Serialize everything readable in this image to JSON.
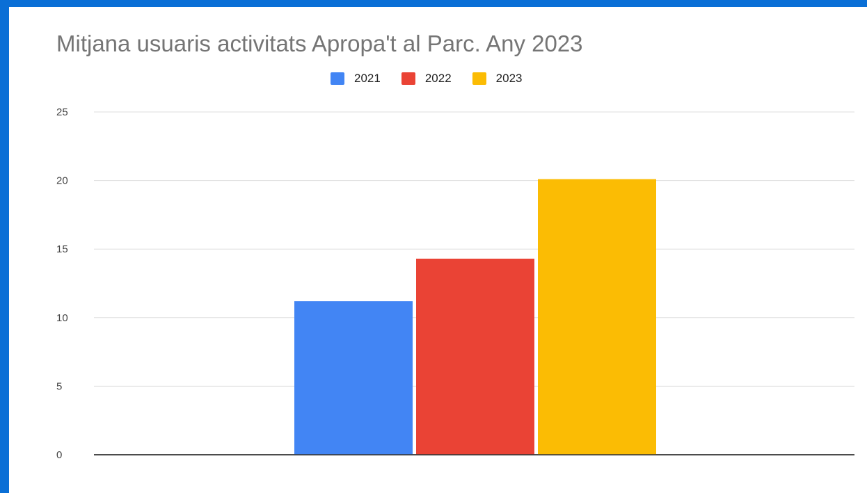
{
  "chart_data": {
    "type": "bar",
    "title": "Mitjana usuaris activitats Apropa't al Parc. Any 2023",
    "categories": [
      ""
    ],
    "series": [
      {
        "name": "2021",
        "values": [
          11.2
        ],
        "color": "#4285f4"
      },
      {
        "name": "2022",
        "values": [
          14.3
        ],
        "color": "#ea4335"
      },
      {
        "name": "2023",
        "values": [
          20.1
        ],
        "color": "#fbbc04"
      }
    ],
    "ylim": [
      0,
      25
    ],
    "yticks": [
      0,
      5,
      10,
      15,
      20,
      25
    ],
    "xlabel": "",
    "ylabel": "",
    "grid": true,
    "legend_position": "top"
  },
  "colors": {
    "background_border": "#0a6fd6",
    "gridline": "#dddddd",
    "axis": "#333333"
  }
}
